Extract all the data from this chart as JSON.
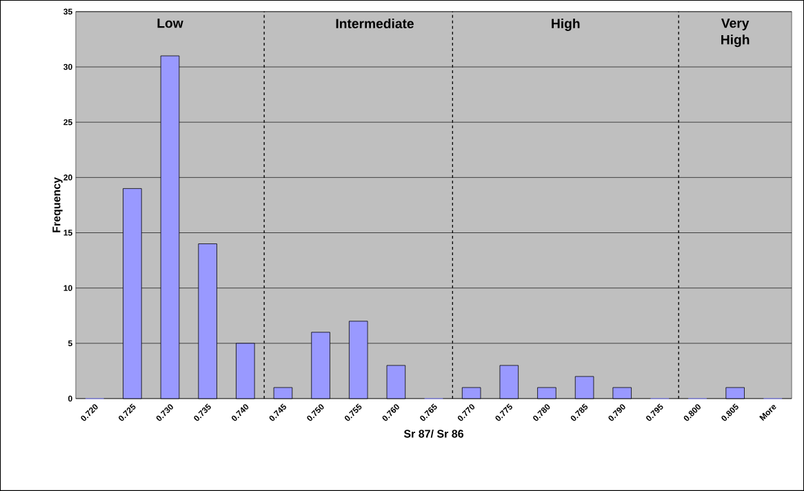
{
  "chart_data": {
    "type": "bar",
    "xlabel": "Sr 87/ Sr 86",
    "ylabel": "Frequency",
    "x": [
      0.72,
      0.725,
      0.73,
      0.735,
      0.74,
      0.745,
      0.75,
      0.755,
      0.76,
      0.765,
      0.77,
      0.775,
      0.78,
      0.785,
      0.79,
      0.795,
      0.8,
      0.805,
      0.81
    ],
    "values": [
      0,
      19,
      31,
      14,
      5,
      1,
      6,
      7,
      3,
      0,
      1,
      3,
      1,
      2,
      1,
      0,
      0,
      1,
      0
    ],
    "color": "#9999ff",
    "xlim": [
      0.7175,
      0.8125
    ],
    "xticks": [
      {
        "value": 0.72,
        "label": "0.720"
      },
      {
        "value": 0.725,
        "label": "0.725"
      },
      {
        "value": 0.73,
        "label": "0.730"
      },
      {
        "value": 0.735,
        "label": "0.735"
      },
      {
        "value": 0.74,
        "label": "0.740"
      },
      {
        "value": 0.745,
        "label": "0.745"
      },
      {
        "value": 0.75,
        "label": "0.750"
      },
      {
        "value": 0.755,
        "label": "0.755"
      },
      {
        "value": 0.76,
        "label": "0.760"
      },
      {
        "value": 0.765,
        "label": "0.765"
      },
      {
        "value": 0.77,
        "label": "0.770"
      },
      {
        "value": 0.775,
        "label": "0.775"
      },
      {
        "value": 0.78,
        "label": "0.780"
      },
      {
        "value": 0.785,
        "label": "0.785"
      },
      {
        "value": 0.79,
        "label": "0.790"
      },
      {
        "value": 0.795,
        "label": "0.795"
      },
      {
        "value": 0.8,
        "label": "0.800"
      },
      {
        "value": 0.805,
        "label": "0.805"
      },
      {
        "value": 0.81,
        "label": "More"
      }
    ],
    "ylim": [
      0,
      35
    ],
    "yticks": [
      0,
      5,
      10,
      15,
      20,
      25,
      30,
      35
    ],
    "grid": "y",
    "ref_lines": [
      {
        "axis": "x",
        "value": 0.7425,
        "line_style": "dashed"
      },
      {
        "axis": "x",
        "value": 0.7675,
        "line_style": "dashed"
      },
      {
        "axis": "x",
        "value": 0.7975,
        "line_style": "dashed"
      }
    ],
    "annotations": [
      "Low",
      "Intermediate",
      "High",
      "Very High"
    ]
  }
}
